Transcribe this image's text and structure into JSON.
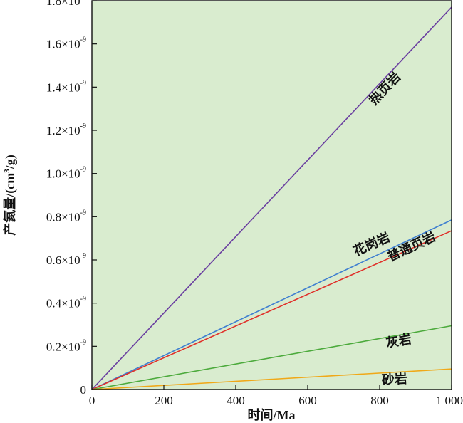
{
  "chart_data": {
    "type": "line",
    "xlabel": "时间/Ma",
    "ylabel": "产氦量/(cm",
    "ylabel_sup": "3",
    "ylabel_tail": "/g)",
    "xlim": [
      0,
      1000
    ],
    "ylim": [
      0,
      1.8
    ],
    "x_ticks": [
      0,
      200,
      400,
      600,
      800,
      1000
    ],
    "x_tick_labels": [
      "0",
      "200",
      "400",
      "600",
      "800",
      "1 000"
    ],
    "y_ticks": [
      0,
      0.2,
      0.4,
      0.6,
      0.8,
      1.0,
      1.2,
      1.4,
      1.6,
      1.8
    ],
    "y_tick_labels": [
      "0",
      "0.2×10",
      "0.4×10",
      "0.6×10",
      "0.8×10",
      "1.0×10",
      "1.2×10",
      "1.4×10",
      "1.6×10",
      "1.8×10"
    ],
    "y_tick_exponent": "-9",
    "plot_background": "#d9eccf",
    "grid": false,
    "series": [
      {
        "name": "热页岩",
        "color": "#6a3fa0",
        "x": [
          0,
          1000
        ],
        "y": [
          0,
          1.77
        ]
      },
      {
        "name": "普通页岩",
        "color": "#3f7fd0",
        "x": [
          0,
          1000
        ],
        "y": [
          0,
          0.785
        ]
      },
      {
        "name": "花岗岩",
        "color": "#e0302a",
        "x": [
          0,
          1000
        ],
        "y": [
          0,
          0.735
        ]
      },
      {
        "name": "灰岩",
        "color": "#4caa3c",
        "x": [
          0,
          1000
        ],
        "y": [
          0,
          0.295
        ]
      },
      {
        "name": "砂岩",
        "color": "#f0a818",
        "x": [
          0,
          1000
        ],
        "y": [
          0,
          0.095
        ]
      }
    ]
  }
}
